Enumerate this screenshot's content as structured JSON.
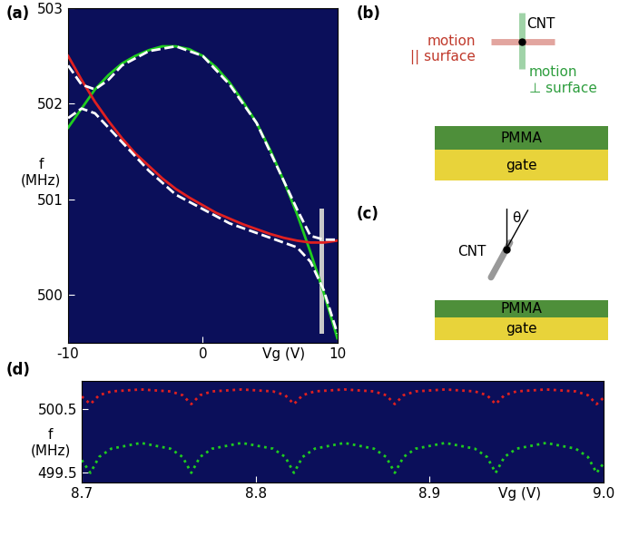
{
  "chart_data": [
    {
      "label": "(a)",
      "type": "line",
      "xlabel": "Vg (V)",
      "ylabel": "f\n(MHz)",
      "xlim": [
        -10,
        10
      ],
      "ylim": [
        499.5,
        503
      ],
      "xticks": [
        -10,
        0,
        10
      ],
      "yticks": [
        500,
        501,
        502,
        503
      ],
      "highlight": {
        "x": [
          8.7,
          9.0
        ],
        "y": [
          499.6,
          500.9
        ]
      },
      "series": [
        {
          "color": "#1fcc1f",
          "line_style": "solid",
          "x": [
            -10,
            -9,
            -8,
            -7,
            -6,
            -5,
            -4,
            -3,
            -2,
            -1,
            0,
            1,
            2,
            3,
            4,
            5,
            6,
            7,
            8,
            9,
            10
          ],
          "values": [
            501.75,
            501.95,
            502.15,
            502.3,
            502.42,
            502.5,
            502.56,
            502.6,
            502.6,
            502.57,
            502.5,
            502.38,
            502.22,
            502.02,
            501.8,
            501.52,
            501.2,
            500.85,
            500.45,
            500.02,
            499.55
          ]
        },
        {
          "color": "#e02020",
          "line_style": "solid",
          "x": [
            -10,
            -9,
            -8,
            -7,
            -6,
            -5,
            -4,
            -3,
            -2,
            -1,
            0,
            1,
            2,
            3,
            4,
            5,
            6,
            7,
            8,
            9,
            10
          ],
          "values": [
            502.5,
            502.25,
            502.02,
            501.82,
            501.64,
            501.48,
            501.35,
            501.22,
            501.11,
            501.02,
            500.94,
            500.86,
            500.8,
            500.74,
            500.69,
            500.64,
            500.6,
            500.57,
            500.55,
            500.55,
            500.57
          ]
        },
        {
          "color": "#ffffff",
          "line_style": "dashed",
          "x": [
            -10,
            -9,
            -8,
            -7,
            -6,
            -4,
            -2,
            0,
            2,
            4,
            6,
            7,
            8,
            9,
            10
          ],
          "values": [
            502.4,
            502.2,
            502.15,
            502.25,
            502.4,
            502.55,
            502.6,
            502.5,
            502.2,
            501.8,
            501.2,
            500.9,
            500.62,
            500.58,
            500.58
          ]
        },
        {
          "color": "#ffffff",
          "line_style": "dashed",
          "x": [
            -10,
            -9,
            -8,
            -7,
            -6,
            -4,
            -2,
            0,
            2,
            4,
            6,
            7,
            8,
            9,
            10
          ],
          "values": [
            501.85,
            501.95,
            501.9,
            501.75,
            501.6,
            501.3,
            501.05,
            500.9,
            500.75,
            500.65,
            500.55,
            500.5,
            500.35,
            500.05,
            499.6
          ]
        }
      ]
    },
    {
      "label": "(d)",
      "type": "line",
      "xlabel": "Vg (V)",
      "ylabel": "f\n(MHz)",
      "xlim": [
        8.7,
        9.0
      ],
      "ylim": [
        499.35,
        500.95
      ],
      "xticks": [
        8.7,
        8.8,
        8.9,
        9.0
      ],
      "yticks": [
        499.5,
        500.5
      ],
      "series": [
        {
          "color": "#e02020",
          "line_style": "dotted",
          "x": [
            8.7,
            8.705,
            8.71,
            8.717,
            8.734,
            8.751,
            8.758,
            8.763,
            8.768,
            8.775,
            8.792,
            8.81,
            8.817,
            8.822,
            8.827,
            8.834,
            8.851,
            8.868,
            8.875,
            8.88,
            8.885,
            8.892,
            8.909,
            8.926,
            8.933,
            8.938,
            8.943,
            8.95,
            8.967,
            8.984,
            8.991,
            8.996,
            9.0
          ],
          "values": [
            500.7,
            500.58,
            500.72,
            500.78,
            500.81,
            500.78,
            500.72,
            500.58,
            500.72,
            500.78,
            500.81,
            500.78,
            500.72,
            500.58,
            500.72,
            500.78,
            500.81,
            500.78,
            500.72,
            500.58,
            500.72,
            500.78,
            500.81,
            500.78,
            500.72,
            500.58,
            500.72,
            500.78,
            500.81,
            500.78,
            500.72,
            500.58,
            500.68
          ]
        },
        {
          "color": "#1fcc1f",
          "line_style": "dotted",
          "x": [
            8.7,
            8.705,
            8.71,
            8.717,
            8.734,
            8.751,
            8.758,
            8.763,
            8.768,
            8.775,
            8.792,
            8.81,
            8.817,
            8.822,
            8.827,
            8.834,
            8.851,
            8.868,
            8.875,
            8.88,
            8.885,
            8.892,
            8.909,
            8.926,
            8.933,
            8.938,
            8.943,
            8.95,
            8.967,
            8.984,
            8.991,
            8.996,
            9.0
          ],
          "values": [
            499.7,
            499.5,
            499.75,
            499.88,
            499.97,
            499.88,
            499.75,
            499.5,
            499.75,
            499.88,
            499.97,
            499.88,
            499.75,
            499.5,
            499.75,
            499.88,
            499.97,
            499.88,
            499.75,
            499.5,
            499.75,
            499.88,
            499.97,
            499.88,
            499.75,
            499.5,
            499.75,
            499.88,
            499.97,
            499.88,
            499.75,
            499.5,
            499.65
          ]
        }
      ]
    }
  ],
  "diagrams": {
    "b": {
      "label": "(b)",
      "cnt": "CNT",
      "parallel": {
        "text": "motion\n|| surface",
        "color": "#c0392b"
      },
      "perpendicular": {
        "text": "motion\n⊥ surface",
        "color": "#2e9e3e"
      },
      "layers": [
        "PMMA",
        "gate"
      ]
    },
    "c": {
      "label": "(c)",
      "cnt": "CNT",
      "angle": "θ",
      "layers": [
        "PMMA",
        "gate"
      ]
    }
  }
}
